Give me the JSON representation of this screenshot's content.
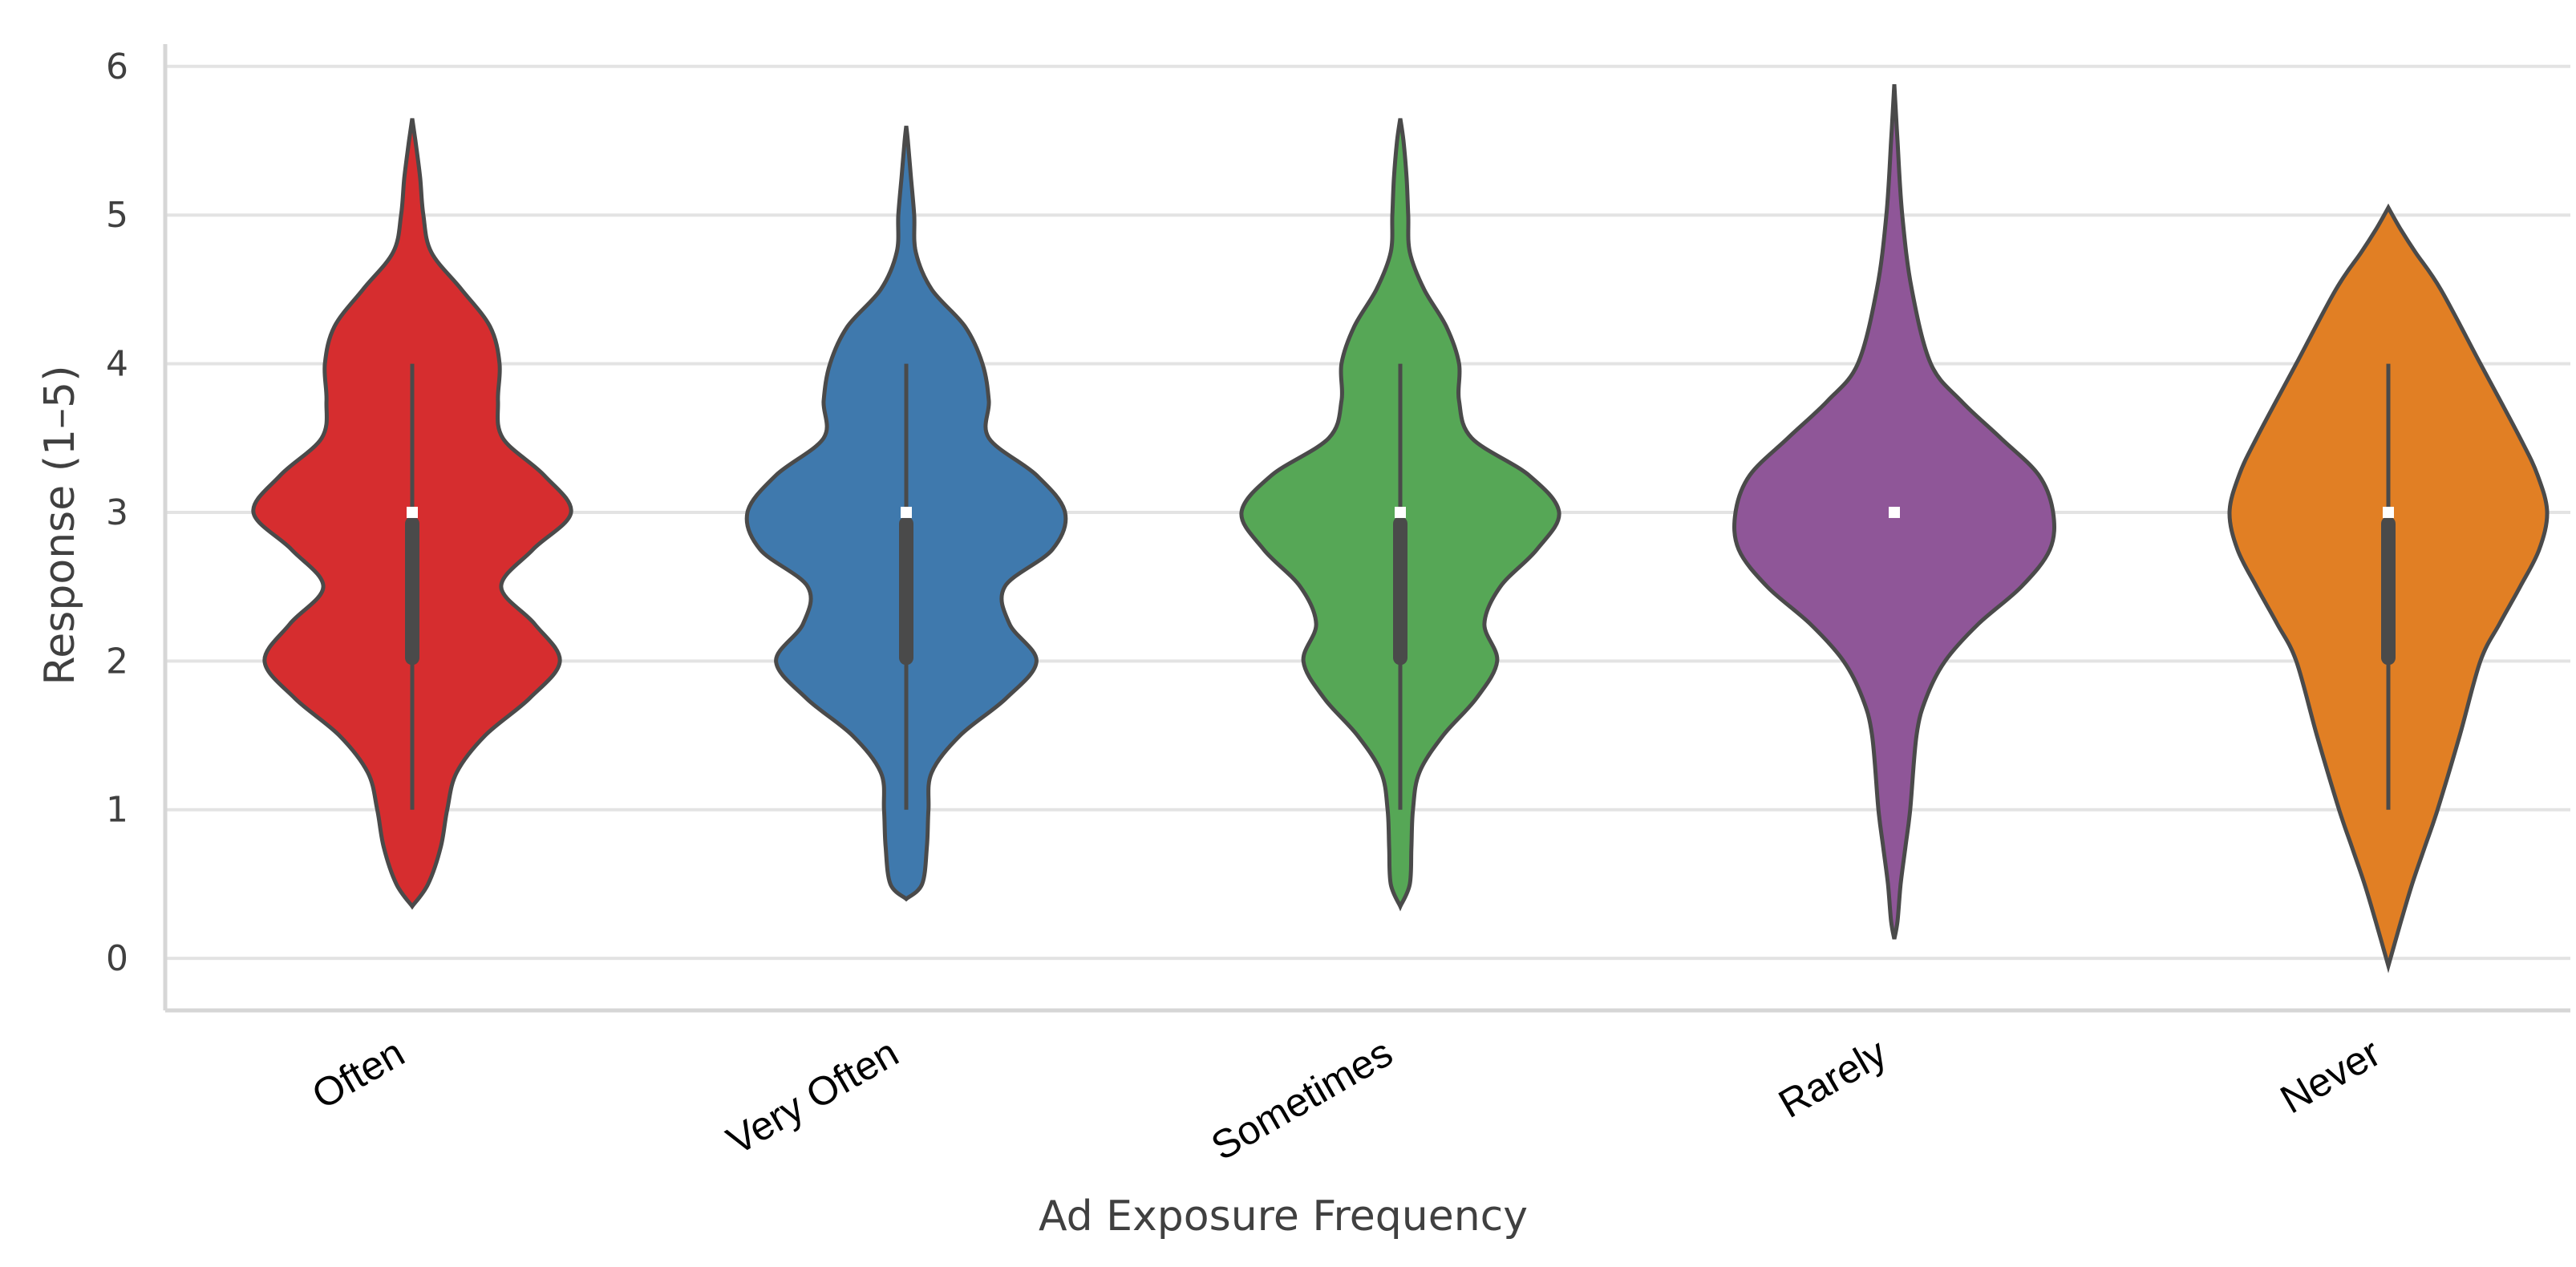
{
  "chart_data": {
    "type": "violin",
    "title": "",
    "xlabel": "Ad Exposure Frequency",
    "ylabel": "Response (1–5)",
    "ylim": [
      -0.35,
      6.15
    ],
    "yticks": [
      0,
      1,
      2,
      3,
      4,
      5,
      6
    ],
    "grid": true,
    "categories": [
      "Often",
      "Very Often",
      "Sometimes",
      "Rarely",
      "Never"
    ],
    "colors": [
      "#d62d2f",
      "#3f79ad",
      "#56a756",
      "#8f5698",
      "#e17f24"
    ],
    "series": [
      {
        "category": "Often",
        "median": 3,
        "q1": 2,
        "q3": 3,
        "whisker_low": 1,
        "whisker_high": 4,
        "extent": [
          0.35,
          5.65
        ],
        "density": [
          [
            0.35,
            0.0
          ],
          [
            0.5,
            0.1
          ],
          [
            0.75,
            0.18
          ],
          [
            1.0,
            0.22
          ],
          [
            1.25,
            0.28
          ],
          [
            1.5,
            0.46
          ],
          [
            1.75,
            0.74
          ],
          [
            2.0,
            0.93
          ],
          [
            2.25,
            0.77
          ],
          [
            2.5,
            0.56
          ],
          [
            2.75,
            0.76
          ],
          [
            3.0,
            1.0
          ],
          [
            3.25,
            0.83
          ],
          [
            3.5,
            0.57
          ],
          [
            3.75,
            0.54
          ],
          [
            4.0,
            0.55
          ],
          [
            4.25,
            0.49
          ],
          [
            4.5,
            0.31
          ],
          [
            4.75,
            0.12
          ],
          [
            5.0,
            0.07
          ],
          [
            5.25,
            0.05
          ],
          [
            5.5,
            0.02
          ],
          [
            5.65,
            0.0
          ]
        ]
      },
      {
        "category": "Very Often",
        "median": 3,
        "q1": 2,
        "q3": 3,
        "whisker_low": 1,
        "whisker_high": 4,
        "extent": [
          0.4,
          5.6
        ],
        "density": [
          [
            0.4,
            0.0
          ],
          [
            0.5,
            0.1
          ],
          [
            0.75,
            0.13
          ],
          [
            1.0,
            0.14
          ],
          [
            1.25,
            0.16
          ],
          [
            1.5,
            0.34
          ],
          [
            1.75,
            0.63
          ],
          [
            2.0,
            0.82
          ],
          [
            2.25,
            0.65
          ],
          [
            2.5,
            0.62
          ],
          [
            2.75,
            0.92
          ],
          [
            3.0,
            1.0
          ],
          [
            3.25,
            0.82
          ],
          [
            3.5,
            0.52
          ],
          [
            3.75,
            0.52
          ],
          [
            4.0,
            0.48
          ],
          [
            4.25,
            0.37
          ],
          [
            4.5,
            0.16
          ],
          [
            4.75,
            0.06
          ],
          [
            5.0,
            0.05
          ],
          [
            5.25,
            0.03
          ],
          [
            5.5,
            0.01
          ],
          [
            5.6,
            0.0
          ]
        ]
      },
      {
        "category": "Sometimes",
        "median": 3,
        "q1": 2,
        "q3": 3,
        "whisker_low": 1,
        "whisker_high": 4,
        "extent": [
          0.35,
          5.65
        ],
        "density": [
          [
            0.35,
            0.0
          ],
          [
            0.5,
            0.06
          ],
          [
            0.75,
            0.07
          ],
          [
            1.0,
            0.08
          ],
          [
            1.25,
            0.12
          ],
          [
            1.5,
            0.27
          ],
          [
            1.75,
            0.48
          ],
          [
            2.0,
            0.61
          ],
          [
            2.25,
            0.53
          ],
          [
            2.5,
            0.63
          ],
          [
            2.75,
            0.86
          ],
          [
            3.0,
            1.0
          ],
          [
            3.25,
            0.81
          ],
          [
            3.5,
            0.45
          ],
          [
            3.75,
            0.37
          ],
          [
            4.0,
            0.37
          ],
          [
            4.25,
            0.29
          ],
          [
            4.5,
            0.15
          ],
          [
            4.75,
            0.06
          ],
          [
            5.0,
            0.05
          ],
          [
            5.25,
            0.04
          ],
          [
            5.5,
            0.02
          ],
          [
            5.65,
            0.0
          ]
        ]
      },
      {
        "category": "Rarely",
        "median": 3,
        "q1": 3,
        "q3": 3,
        "whisker_low": 3,
        "whisker_high": 3,
        "extent": [
          0.13,
          5.88
        ],
        "density": [
          [
            0.13,
            0.0
          ],
          [
            0.25,
            0.02
          ],
          [
            0.5,
            0.04
          ],
          [
            0.75,
            0.07
          ],
          [
            1.0,
            0.1
          ],
          [
            1.5,
            0.14
          ],
          [
            1.75,
            0.2
          ],
          [
            2.0,
            0.32
          ],
          [
            2.25,
            0.53
          ],
          [
            2.5,
            0.8
          ],
          [
            2.75,
            0.98
          ],
          [
            3.0,
            1.0
          ],
          [
            3.25,
            0.91
          ],
          [
            3.5,
            0.67
          ],
          [
            3.75,
            0.42
          ],
          [
            4.0,
            0.23
          ],
          [
            4.5,
            0.11
          ],
          [
            5.0,
            0.05
          ],
          [
            5.5,
            0.02
          ],
          [
            5.88,
            0.0
          ]
        ]
      },
      {
        "category": "Never",
        "median": 3,
        "q1": 2,
        "q3": 3,
        "whisker_low": 1,
        "whisker_high": 4,
        "extent": [
          -0.05,
          5.05
        ],
        "density": [
          [
            -0.05,
            0.0
          ],
          [
            0.25,
            0.08
          ],
          [
            0.5,
            0.15
          ],
          [
            0.75,
            0.23
          ],
          [
            1.0,
            0.31
          ],
          [
            1.5,
            0.45
          ],
          [
            2.0,
            0.58
          ],
          [
            2.25,
            0.7
          ],
          [
            2.5,
            0.83
          ],
          [
            2.75,
            0.95
          ],
          [
            3.0,
            1.0
          ],
          [
            3.25,
            0.94
          ],
          [
            3.5,
            0.83
          ],
          [
            4.0,
            0.58
          ],
          [
            4.5,
            0.33
          ],
          [
            4.75,
            0.17
          ],
          [
            4.9,
            0.08
          ],
          [
            5.05,
            0.0
          ]
        ]
      }
    ]
  }
}
